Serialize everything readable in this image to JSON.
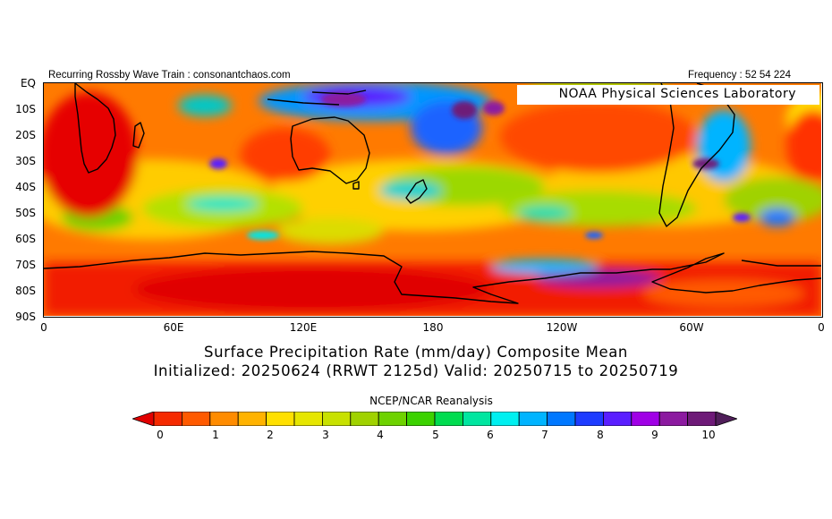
{
  "header": {
    "left": "Recurring Rossby Wave Train : consonantchaos.com",
    "right": "Frequency : 52 54 224"
  },
  "map": {
    "badge": "NOAA Physical Sciences Laboratory",
    "y_ticks": [
      "EQ",
      "10S",
      "20S",
      "30S",
      "40S",
      "50S",
      "60S",
      "70S",
      "80S",
      "90S"
    ],
    "x_ticks": [
      "0",
      "60E",
      "120E",
      "180",
      "120W",
      "60W",
      "0"
    ]
  },
  "title": {
    "line1": "Surface Precipitation Rate (mm/day) Composite Mean",
    "line2": "Initialized: 20250624 (RRWT 2125d) Valid: 20250715 to 20250719"
  },
  "colorbar": {
    "source": "NCEP/NCAR Reanalysis",
    "labels": [
      "0",
      "1",
      "2",
      "3",
      "4",
      "5",
      "6",
      "7",
      "8",
      "9",
      "10"
    ],
    "colors": [
      "#e10000",
      "#f52a00",
      "#ff5a00",
      "#ff8c00",
      "#ffb300",
      "#ffe000",
      "#e6e600",
      "#c8e100",
      "#a0d200",
      "#6ed200",
      "#3cd200",
      "#00dc50",
      "#00e6a0",
      "#00f0f0",
      "#00b4ff",
      "#0078ff",
      "#1e3cff",
      "#5a1eff",
      "#a000e6",
      "#8c1aa0",
      "#6e1a78",
      "#501e5a"
    ]
  }
}
